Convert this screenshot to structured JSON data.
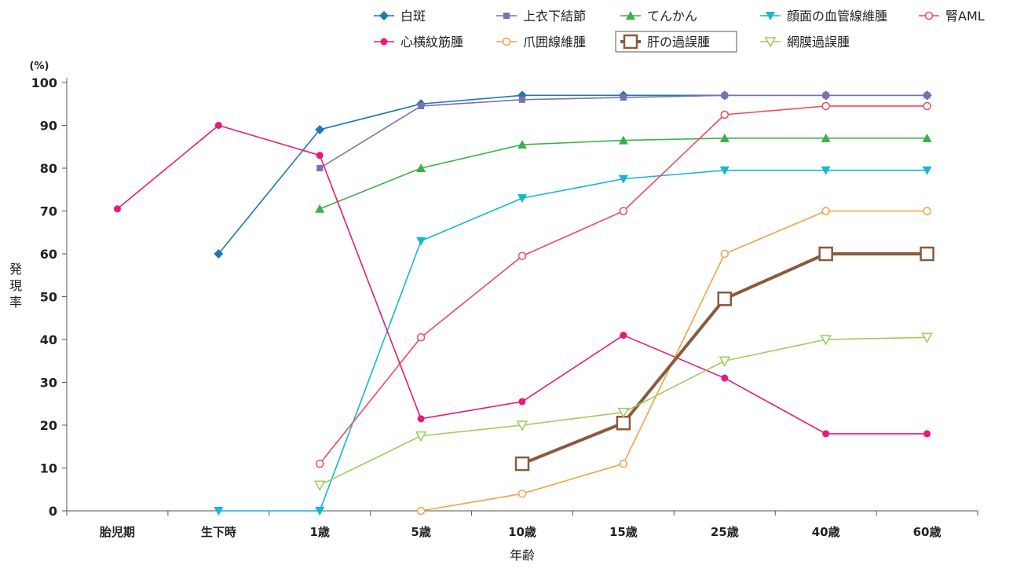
{
  "chart_data": {
    "type": "line",
    "title": "",
    "xlabel": "年齢",
    "ylabel": "発現率",
    "yunit": "(%)",
    "categories": [
      "胎児期",
      "生下時",
      "1歳",
      "5歳",
      "10歳",
      "15歳",
      "25歳",
      "40歳",
      "60歳"
    ],
    "ylim": [
      0,
      100
    ],
    "yticks": [
      0,
      10,
      20,
      30,
      40,
      50,
      60,
      70,
      80,
      90,
      100
    ],
    "grid": false,
    "legend_position": "top",
    "series": [
      {
        "name": "白斑",
        "color": "#1f77b4",
        "marker": "diamond",
        "emphasis": false,
        "values": [
          null,
          60,
          89,
          95,
          97,
          97,
          97,
          97,
          97
        ]
      },
      {
        "name": "上衣下結節",
        "color": "#7f6fb0",
        "marker": "square-small",
        "emphasis": false,
        "values": [
          null,
          null,
          80,
          94.5,
          96,
          96.5,
          97,
          97,
          97
        ]
      },
      {
        "name": "てんかん",
        "color": "#3cb04a",
        "marker": "triangle",
        "emphasis": false,
        "values": [
          null,
          null,
          70.5,
          80,
          85.5,
          86.5,
          87,
          87,
          87
        ]
      },
      {
        "name": "顔面の血管線維腫",
        "color": "#12b8d4",
        "marker": "triangle-down",
        "emphasis": false,
        "values": [
          null,
          0,
          0,
          63,
          73,
          77.5,
          79.5,
          79.5,
          79.5
        ]
      },
      {
        "name": "腎AML",
        "color": "#ee4a5a",
        "marker": "circle-open",
        "emphasis": false,
        "values": [
          null,
          null,
          11,
          40.5,
          59.5,
          70,
          92.5,
          94.5,
          94.5
        ]
      },
      {
        "name": "心横紋筋腫",
        "color": "#e8197a",
        "marker": "circle",
        "emphasis": false,
        "values": [
          70.5,
          90,
          83,
          21.5,
          25.5,
          41,
          31,
          18,
          18
        ]
      },
      {
        "name": "爪囲線維腫",
        "color": "#f5a142",
        "marker": "circle-open",
        "emphasis": false,
        "values": [
          null,
          null,
          null,
          0,
          4,
          11,
          60,
          70,
          70
        ]
      },
      {
        "name": "肝の過誤腫",
        "color": "#8b5a3c",
        "marker": "square-open-large",
        "emphasis": true,
        "values": [
          null,
          null,
          null,
          null,
          11,
          20.5,
          49.5,
          60,
          60
        ]
      },
      {
        "name": "網膜過誤腫",
        "color": "#9ccd5a",
        "marker": "triangle-down-open",
        "emphasis": false,
        "values": [
          null,
          null,
          6,
          17.5,
          20,
          23,
          35,
          40,
          40.5
        ]
      }
    ]
  }
}
